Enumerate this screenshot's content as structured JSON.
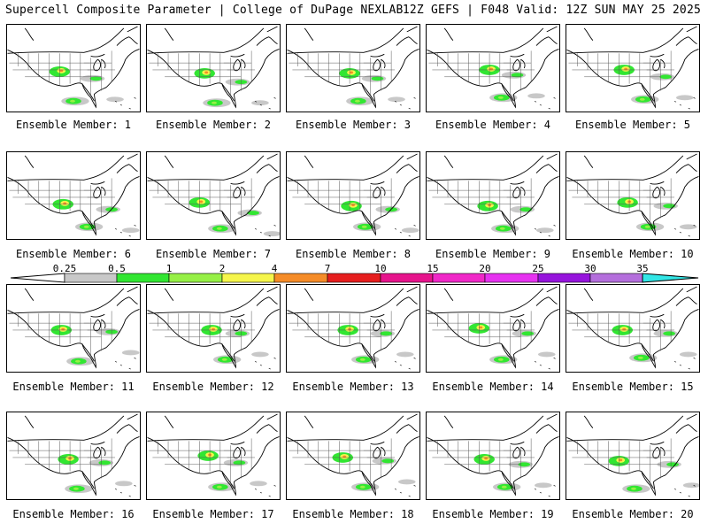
{
  "header": {
    "left": "Supercell Composite Parameter | College of DuPage NEXLAB",
    "right": "12Z GEFS | F048 Valid: 12Z SUN MAY 25 2025"
  },
  "panels": [
    {
      "label": "Ensemble Member: 1"
    },
    {
      "label": "Ensemble Member: 2"
    },
    {
      "label": "Ensemble Member: 3"
    },
    {
      "label": "Ensemble Member: 4"
    },
    {
      "label": "Ensemble Member: 5"
    },
    {
      "label": "Ensemble Member: 6"
    },
    {
      "label": "Ensemble Member: 7"
    },
    {
      "label": "Ensemble Member: 8"
    },
    {
      "label": "Ensemble Member: 9"
    },
    {
      "label": "Ensemble Member: 10"
    },
    {
      "label": "Ensemble Member: 11"
    },
    {
      "label": "Ensemble Member: 12"
    },
    {
      "label": "Ensemble Member: 13"
    },
    {
      "label": "Ensemble Member: 14"
    },
    {
      "label": "Ensemble Member: 15"
    },
    {
      "label": "Ensemble Member: 16"
    },
    {
      "label": "Ensemble Member: 17"
    },
    {
      "label": "Ensemble Member: 18"
    },
    {
      "label": "Ensemble Member: 19"
    },
    {
      "label": "Ensemble Member: 20"
    }
  ],
  "colorbar": {
    "ticks": [
      "0.25",
      "0.5",
      "1",
      "2",
      "4",
      "7",
      "10",
      "15",
      "20",
      "25",
      "30",
      "35"
    ],
    "colors": [
      "#c8c8c8",
      "#32e632",
      "#96f046",
      "#f5f54b",
      "#f58c28",
      "#e61e1e",
      "#e6148c",
      "#f028c8",
      "#e632f0",
      "#9614dc",
      "#b46edc",
      "#32e6e6"
    ]
  }
}
